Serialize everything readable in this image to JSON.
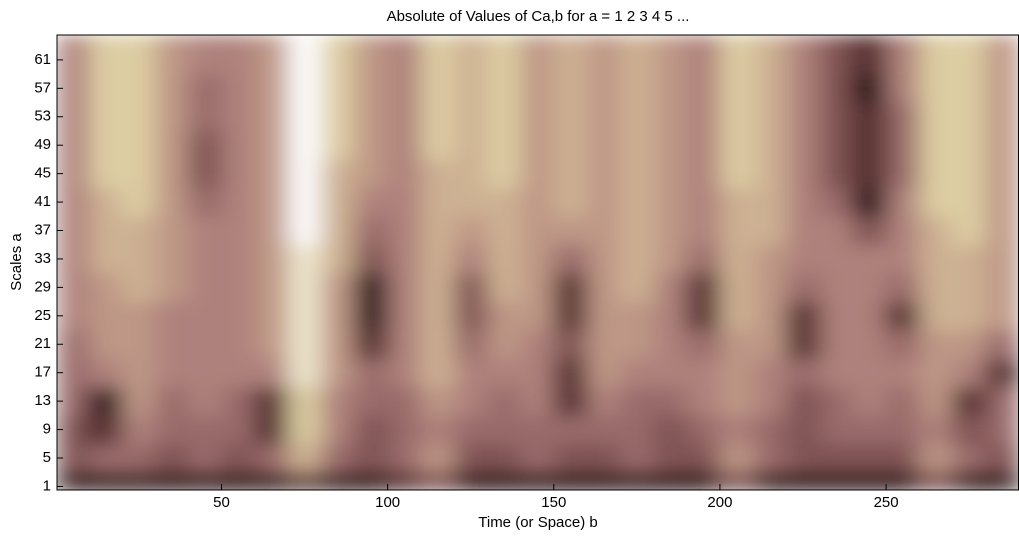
{
  "chart_data": {
    "type": "heatmap",
    "title": "Absolute of Values of Ca,b for a =  1 2 3 4 5 ...",
    "xlabel": "Time (or Space) b",
    "ylabel": "Scales a",
    "xlim": [
      0.5,
      290
    ],
    "ylim": [
      0.5,
      64.5
    ],
    "xticks": [
      50,
      100,
      150,
      200,
      250
    ],
    "yticks": [
      1,
      5,
      9,
      13,
      17,
      21,
      25,
      29,
      33,
      37,
      41,
      45,
      49,
      53,
      57,
      61
    ],
    "colormap": [
      "#1e0000",
      "#7a4d4d",
      "#a87878",
      "#c4a08a",
      "#e0d3a6",
      "#ffffff"
    ],
    "x": [
      5,
      15,
      25,
      35,
      45,
      55,
      65,
      75,
      85,
      95,
      105,
      115,
      125,
      135,
      145,
      155,
      165,
      175,
      185,
      195,
      205,
      215,
      225,
      235,
      245,
      255,
      265,
      275,
      285
    ],
    "y": [
      1,
      5,
      9,
      13,
      17,
      21,
      25,
      29,
      33,
      37,
      41,
      45,
      49,
      53,
      57,
      61
    ],
    "z": [
      [
        1,
        1,
        1,
        1,
        1,
        1,
        1,
        2,
        1,
        1,
        2,
        3,
        1,
        1,
        1,
        1,
        1,
        1,
        1,
        1,
        3,
        1,
        1,
        1,
        1,
        1,
        3,
        1,
        1
      ],
      [
        3,
        4,
        4,
        3,
        4,
        3,
        4,
        7,
        4,
        3,
        4,
        6,
        3,
        3,
        4,
        3,
        3,
        4,
        3,
        3,
        6,
        4,
        3,
        3,
        3,
        3,
        6,
        4,
        3
      ],
      [
        3,
        2,
        5,
        4,
        4,
        4,
        2,
        8,
        5,
        3,
        4,
        5,
        4,
        4,
        4,
        4,
        4,
        4,
        3,
        4,
        5,
        4,
        3,
        4,
        4,
        4,
        5,
        3,
        4
      ],
      [
        4,
        1,
        6,
        4,
        5,
        4,
        2,
        8,
        5,
        4,
        4,
        6,
        5,
        4,
        5,
        2,
        5,
        4,
        4,
        5,
        6,
        5,
        3,
        4,
        5,
        4,
        6,
        2,
        4
      ],
      [
        4,
        5,
        6,
        5,
        5,
        5,
        5,
        9,
        6,
        4,
        5,
        7,
        5,
        5,
        5,
        2,
        6,
        5,
        5,
        5,
        6,
        5,
        4,
        5,
        5,
        5,
        6,
        5,
        2
      ],
      [
        4,
        6,
        6,
        5,
        5,
        5,
        6,
        9,
        6,
        2,
        5,
        7,
        4,
        6,
        5,
        3,
        6,
        6,
        5,
        4,
        6,
        6,
        2,
        5,
        5,
        4,
        6,
        6,
        4
      ],
      [
        5,
        6,
        6,
        5,
        5,
        5,
        6,
        9,
        6,
        1,
        5,
        7,
        3,
        6,
        6,
        2,
        6,
        6,
        5,
        2,
        7,
        6,
        2,
        5,
        5,
        2,
        7,
        7,
        6
      ],
      [
        5,
        6,
        7,
        6,
        5,
        5,
        6,
        9,
        6,
        1,
        5,
        7,
        3,
        7,
        6,
        2,
        6,
        7,
        5,
        2,
        7,
        6,
        4,
        5,
        5,
        4,
        7,
        7,
        6
      ],
      [
        5,
        7,
        7,
        6,
        5,
        5,
        6,
        9,
        7,
        3,
        5,
        7,
        5,
        7,
        6,
        4,
        6,
        7,
        6,
        4,
        7,
        6,
        5,
        5,
        5,
        5,
        7,
        7,
        6
      ],
      [
        5,
        7,
        7,
        6,
        5,
        5,
        6,
        10,
        7,
        4,
        5,
        7,
        6,
        7,
        6,
        6,
        6,
        7,
        6,
        5,
        7,
        7,
        5,
        5,
        3,
        5,
        7,
        8,
        6
      ],
      [
        5,
        7,
        8,
        6,
        4,
        5,
        6,
        10,
        7,
        5,
        5,
        7,
        7,
        7,
        6,
        7,
        6,
        7,
        6,
        5,
        7,
        7,
        5,
        4,
        1,
        5,
        8,
        8,
        6
      ],
      [
        5,
        8,
        8,
        6,
        3,
        5,
        6,
        10,
        7,
        6,
        5,
        7,
        7,
        8,
        6,
        7,
        6,
        7,
        6,
        5,
        8,
        7,
        5,
        3,
        2,
        4,
        8,
        8,
        6
      ],
      [
        5,
        8,
        8,
        6,
        3,
        5,
        6,
        10,
        8,
        6,
        5,
        8,
        7,
        8,
        6,
        7,
        6,
        7,
        6,
        5,
        8,
        7,
        5,
        3,
        2,
        4,
        8,
        8,
        6
      ],
      [
        5,
        8,
        8,
        6,
        4,
        5,
        6,
        10,
        8,
        6,
        5,
        8,
        7,
        8,
        6,
        7,
        6,
        7,
        6,
        5,
        8,
        7,
        5,
        3,
        2,
        4,
        8,
        8,
        6
      ],
      [
        5,
        8,
        8,
        6,
        4,
        5,
        6,
        10,
        8,
        6,
        5,
        8,
        7,
        8,
        6,
        7,
        6,
        7,
        6,
        5,
        8,
        7,
        5,
        3,
        1,
        5,
        8,
        8,
        6
      ],
      [
        5,
        8,
        8,
        6,
        5,
        5,
        6,
        10,
        8,
        6,
        5,
        8,
        7,
        8,
        6,
        7,
        6,
        7,
        6,
        5,
        8,
        7,
        5,
        3,
        2,
        5,
        8,
        8,
        6
      ]
    ]
  }
}
